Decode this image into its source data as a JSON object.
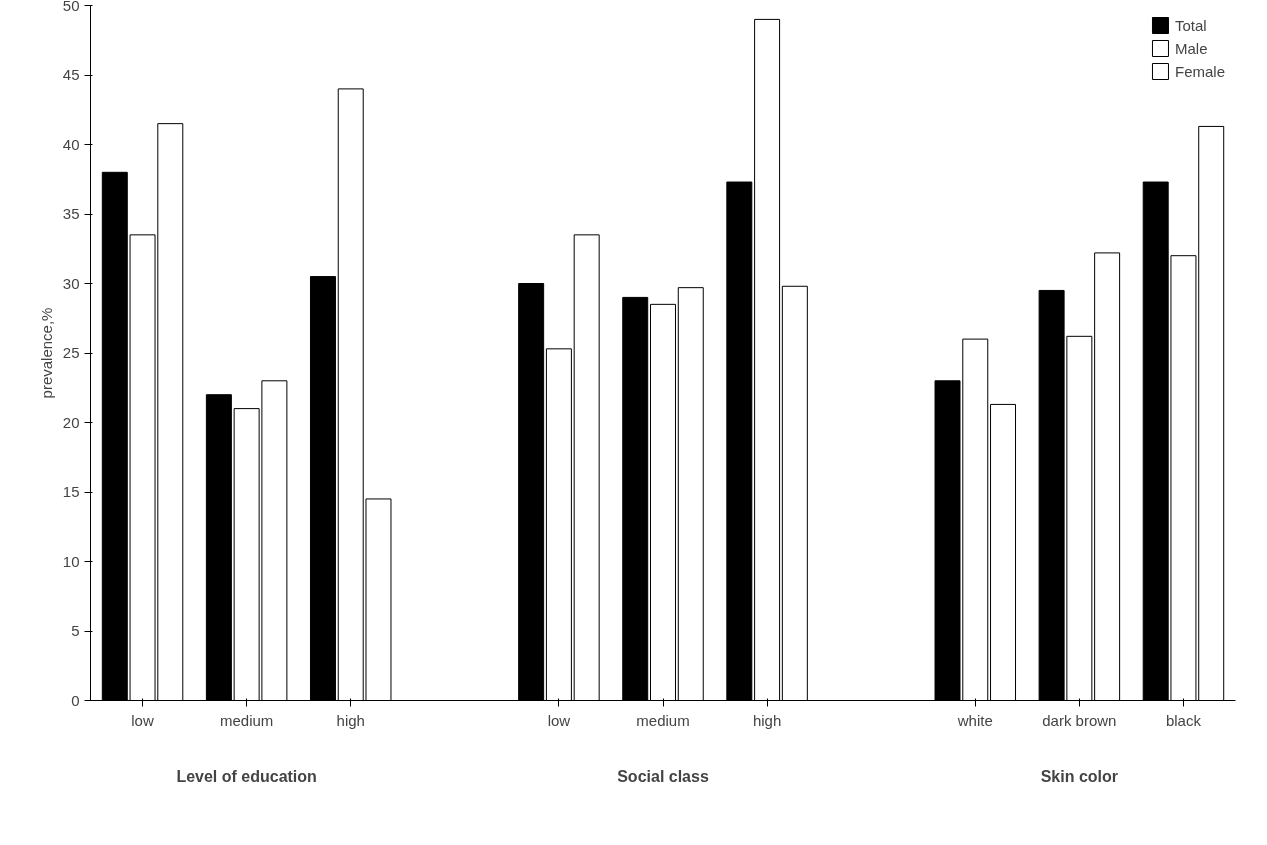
{
  "chart_data": {
    "type": "bar",
    "ylabel": "prevalence,%",
    "categories": [
      "low",
      "medium",
      "high",
      null,
      "low",
      "medium",
      "high",
      null,
      "white",
      "dark brown",
      "black"
    ],
    "series": [
      {
        "name": "Total",
        "color": "#000000",
        "values": [
          38,
          22,
          30.5,
          null,
          30,
          29,
          37.3,
          null,
          23,
          29.5,
          37.3
        ]
      },
      {
        "name": "Male",
        "color": "#ffffff",
        "values": [
          33.5,
          21,
          44,
          null,
          25.3,
          28.5,
          49,
          null,
          26,
          26.2,
          32
        ]
      },
      {
        "name": "Female",
        "color": "#ffffff",
        "values": [
          41.5,
          23,
          14.5,
          null,
          33.5,
          29.7,
          29.8,
          null,
          21.3,
          32.2,
          41.3
        ]
      }
    ],
    "ylim": [
      0,
      50
    ],
    "yticks": [
      0,
      5,
      10,
      15,
      20,
      25,
      30,
      35,
      40,
      45,
      50
    ],
    "annotations": [
      "Level of education",
      "Social class",
      "Skin color"
    ],
    "grid": false,
    "legend": "top right"
  }
}
